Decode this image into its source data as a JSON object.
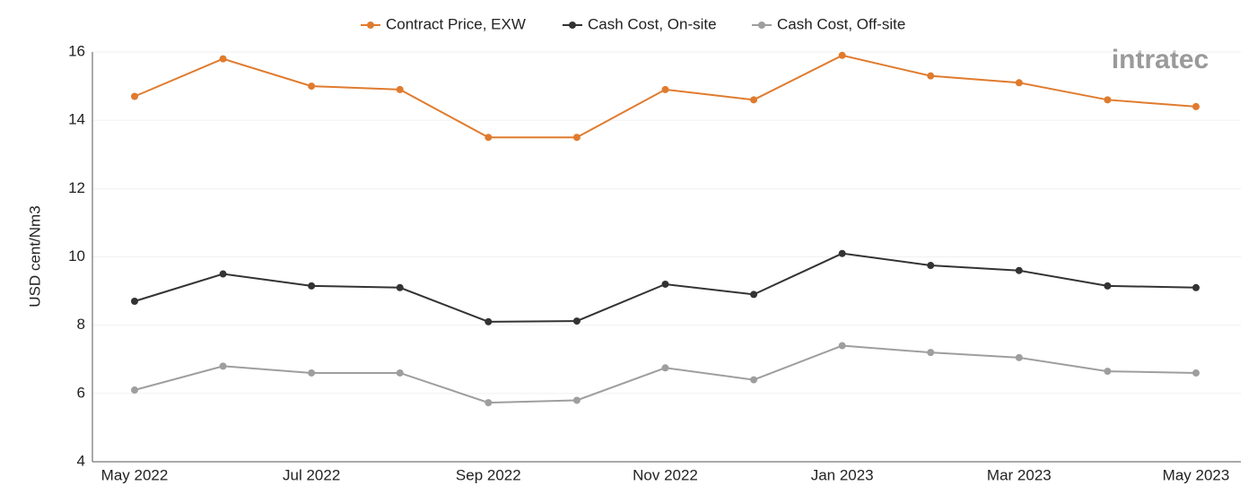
{
  "chart_data": {
    "type": "line",
    "logo": "intratec",
    "ylabel": "USD cent/Nm3",
    "categories": [
      "May 2022",
      null,
      "Jul 2022",
      null,
      "Sep 2022",
      null,
      "Nov 2022",
      null,
      "Jan 2023",
      null,
      "Mar 2023",
      null,
      "May 2023"
    ],
    "series": [
      {
        "name": "Contract Price, EXW",
        "color": "#e07b2e",
        "values": [
          14.7,
          15.8,
          15.0,
          14.9,
          13.5,
          13.5,
          14.9,
          14.6,
          15.9,
          15.3,
          15.1,
          14.6,
          14.4
        ]
      },
      {
        "name": "Cash Cost, On-site",
        "color": "#333333",
        "values": [
          8.7,
          9.5,
          9.15,
          9.1,
          8.1,
          8.12,
          9.2,
          8.9,
          10.1,
          9.75,
          9.6,
          9.15,
          9.1
        ]
      },
      {
        "name": "Cash Cost, Off-site",
        "color": "#9e9e9e",
        "values": [
          6.1,
          6.8,
          6.6,
          6.6,
          5.73,
          5.8,
          6.75,
          6.4,
          7.4,
          7.2,
          7.05,
          6.65,
          6.6
        ]
      }
    ],
    "ylim": [
      4,
      16
    ],
    "yticks": [
      4,
      6,
      8,
      10,
      12,
      14,
      16
    ],
    "grid": true,
    "legend": "top"
  }
}
